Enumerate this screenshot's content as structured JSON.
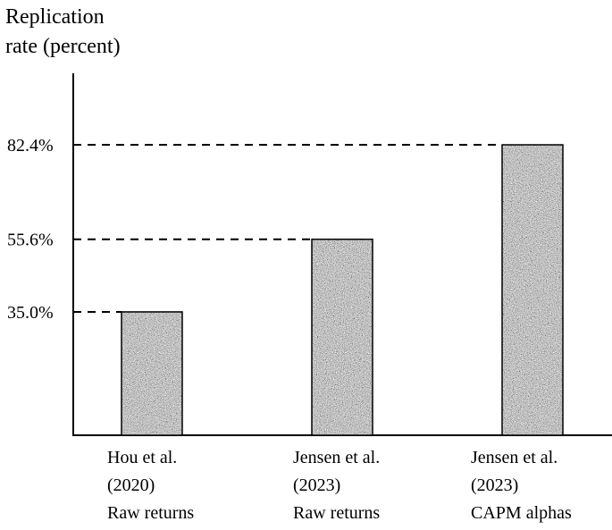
{
  "chart_data": {
    "type": "bar",
    "ylabel_lines": [
      "Replication",
      "rate (percent)"
    ],
    "categories": [
      [
        "Hou et al.",
        "(2020)",
        "Raw returns"
      ],
      [
        "Jensen et al.",
        "(2023)",
        "Raw returns"
      ],
      [
        "Jensen et al.",
        "(2023)",
        "CAPM alphas"
      ]
    ],
    "values": [
      35.0,
      55.6,
      82.4
    ],
    "value_labels": [
      "35.0%",
      "55.6%",
      "82.4%"
    ],
    "ylim": [
      0,
      100
    ],
    "grid": false,
    "bar_fill": "speckled-gray",
    "colors": {
      "axis": "#000000",
      "bar_base": "#8a8a8a",
      "bar_edge": "#000000"
    }
  }
}
